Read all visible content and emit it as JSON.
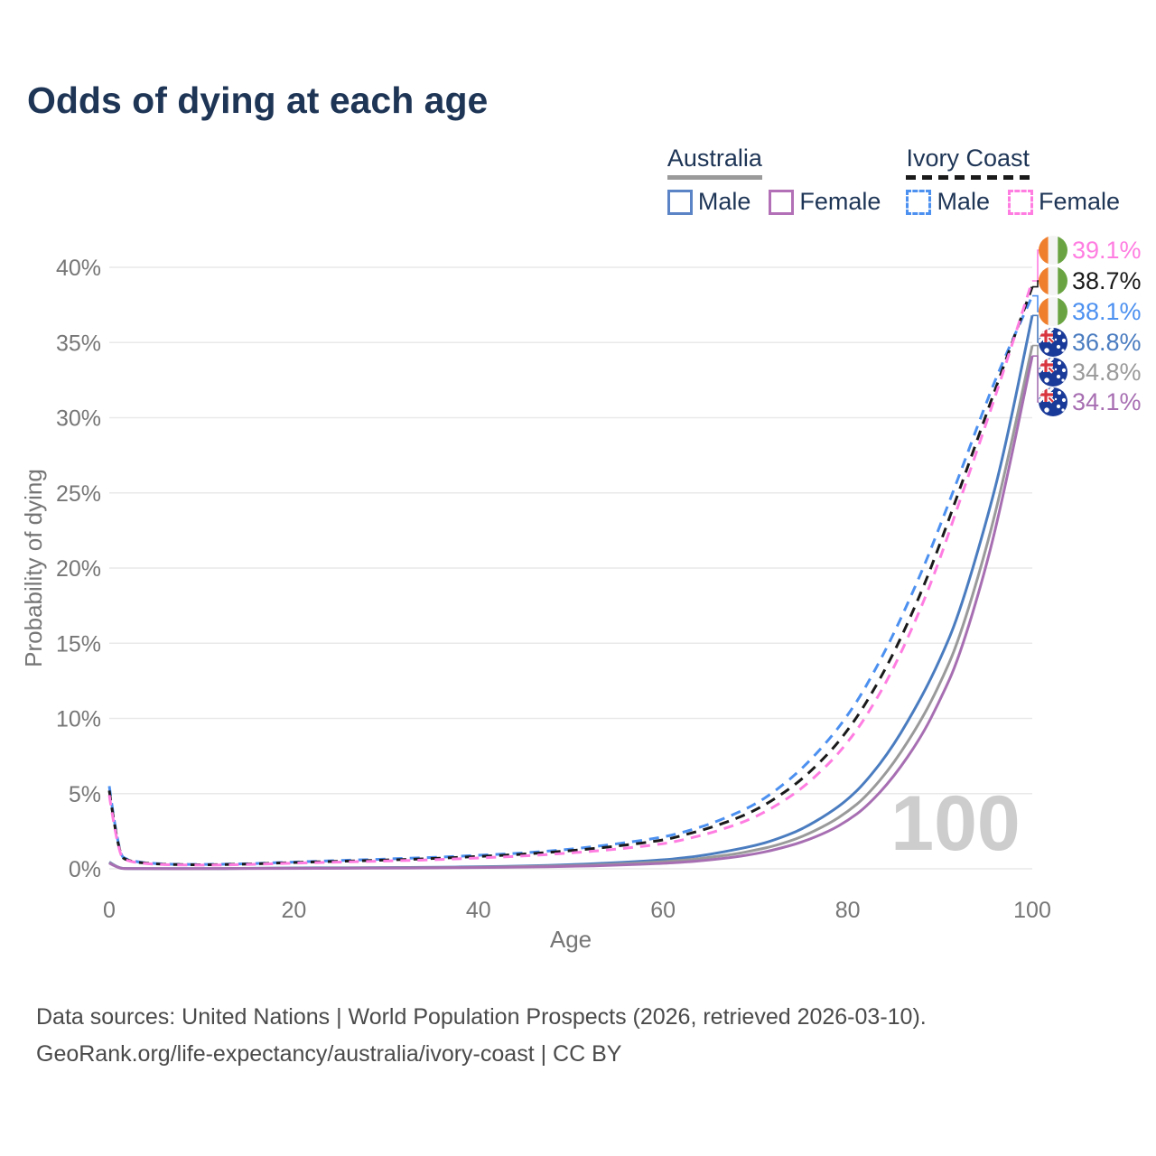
{
  "title": "Odds of dying at each age",
  "legend": {
    "groups": [
      {
        "country": "Australia",
        "line_style": "solid",
        "underline_color": "#9a9a9a",
        "items": [
          {
            "label": "Male",
            "color": "#5b84c6"
          },
          {
            "label": "Female",
            "color": "#b271b6"
          }
        ]
      },
      {
        "country": "Ivory Coast",
        "line_style": "dashed",
        "underline_color": "#1a1a1a",
        "items": [
          {
            "label": "Male",
            "color": "#4c90f0"
          },
          {
            "label": "Female",
            "color": "#ff7de1"
          }
        ]
      }
    ]
  },
  "footer": {
    "line1": "Data sources: United Nations | World Population Prospects (2026, retrieved 2026-03-10).",
    "line2": "GeoRank.org/life-expectancy/australia/ivory-coast | CC BY"
  },
  "chart_data": {
    "type": "line",
    "title": "Odds of dying at each age",
    "xlabel": "Age",
    "ylabel": "Probability of dying",
    "xlim": [
      0,
      100
    ],
    "ylim": [
      0,
      40
    ],
    "x_ticks": [
      0,
      20,
      40,
      60,
      80,
      100
    ],
    "y_ticks": [
      0,
      5,
      10,
      15,
      20,
      25,
      30,
      35,
      40
    ],
    "y_tick_suffix": "%",
    "grid": "horizontal",
    "watermark": "100",
    "ages": [
      0,
      1,
      2,
      5,
      10,
      15,
      20,
      25,
      30,
      35,
      40,
      45,
      50,
      55,
      60,
      62,
      65,
      68,
      70,
      72,
      75,
      78,
      80,
      82,
      85,
      88,
      90,
      92,
      95,
      97,
      100
    ],
    "series": [
      {
        "id": "au-male",
        "name": "Australia Male",
        "color": "#4a7cc0",
        "dash": false,
        "end_label": "36.8%",
        "flag": "australia",
        "values": [
          0.45,
          0.04,
          0.02,
          0.01,
          0.01,
          0.03,
          0.06,
          0.07,
          0.08,
          0.1,
          0.13,
          0.18,
          0.27,
          0.4,
          0.6,
          0.7,
          0.95,
          1.3,
          1.55,
          1.9,
          2.6,
          3.7,
          4.6,
          5.8,
          8.2,
          11.4,
          13.9,
          16.8,
          23.0,
          27.8,
          36.8
        ]
      },
      {
        "id": "au-total",
        "name": "Australia",
        "color": "#9a9a9a",
        "dash": false,
        "end_label": "34.8%",
        "flag": "australia",
        "values": [
          0.42,
          0.035,
          0.018,
          0.009,
          0.009,
          0.022,
          0.045,
          0.055,
          0.065,
          0.08,
          0.105,
          0.145,
          0.21,
          0.31,
          0.47,
          0.55,
          0.75,
          1.0,
          1.25,
          1.5,
          2.1,
          3.0,
          3.8,
          4.8,
          7.0,
          9.9,
          12.3,
          15.1,
          21.2,
          26.2,
          34.8
        ]
      },
      {
        "id": "au-female",
        "name": "Australia Female",
        "color": "#a76fb2",
        "dash": false,
        "end_label": "34.1%",
        "flag": "australia",
        "values": [
          0.38,
          0.03,
          0.015,
          0.008,
          0.008,
          0.015,
          0.03,
          0.035,
          0.045,
          0.06,
          0.08,
          0.11,
          0.16,
          0.24,
          0.36,
          0.43,
          0.58,
          0.8,
          1.0,
          1.25,
          1.75,
          2.5,
          3.2,
          4.1,
          6.1,
          8.8,
          11.2,
          13.9,
          20.0,
          25.2,
          34.1
        ]
      },
      {
        "id": "ic-male",
        "name": "Ivory Coast Male",
        "color": "#4c90f0",
        "dash": true,
        "end_label": "38.1%",
        "flag": "ivory-coast",
        "values": [
          5.5,
          1.0,
          0.55,
          0.32,
          0.28,
          0.33,
          0.45,
          0.55,
          0.65,
          0.75,
          0.9,
          1.05,
          1.3,
          1.65,
          2.1,
          2.4,
          2.95,
          3.7,
          4.3,
          5.1,
          6.6,
          8.6,
          10.2,
          12.1,
          15.6,
          19.7,
          22.8,
          26.0,
          31.0,
          34.0,
          38.1
        ]
      },
      {
        "id": "ic-total",
        "name": "Ivory Coast",
        "color": "#1a1a1a",
        "dash": true,
        "end_label": "38.7%",
        "flag": "ivory-coast",
        "values": [
          5.2,
          0.95,
          0.5,
          0.3,
          0.26,
          0.31,
          0.42,
          0.5,
          0.58,
          0.68,
          0.82,
          0.97,
          1.2,
          1.5,
          1.9,
          2.2,
          2.7,
          3.35,
          3.9,
          4.6,
          5.9,
          7.7,
          9.2,
          11.0,
          14.3,
          18.4,
          21.6,
          25.0,
          30.2,
          33.6,
          38.7
        ]
      },
      {
        "id": "ic-female",
        "name": "Ivory Coast Female",
        "color": "#ff7de1",
        "dash": true,
        "end_label": "39.1%",
        "flag": "ivory-coast",
        "values": [
          4.9,
          0.9,
          0.48,
          0.28,
          0.24,
          0.28,
          0.38,
          0.45,
          0.52,
          0.6,
          0.72,
          0.85,
          1.05,
          1.3,
          1.65,
          1.9,
          2.35,
          2.95,
          3.45,
          4.1,
          5.3,
          7.0,
          8.4,
          10.1,
          13.3,
          17.4,
          20.6,
          24.2,
          29.6,
          33.3,
          39.1
        ]
      }
    ],
    "flag_colors": {
      "ivory_coast": {
        "orange": "#f07f2d",
        "white": "#f4f4f4",
        "green": "#6aa442"
      },
      "australia": {
        "blue": "#1a3a99",
        "red": "#d8353f",
        "white": "#ffffff"
      }
    }
  }
}
